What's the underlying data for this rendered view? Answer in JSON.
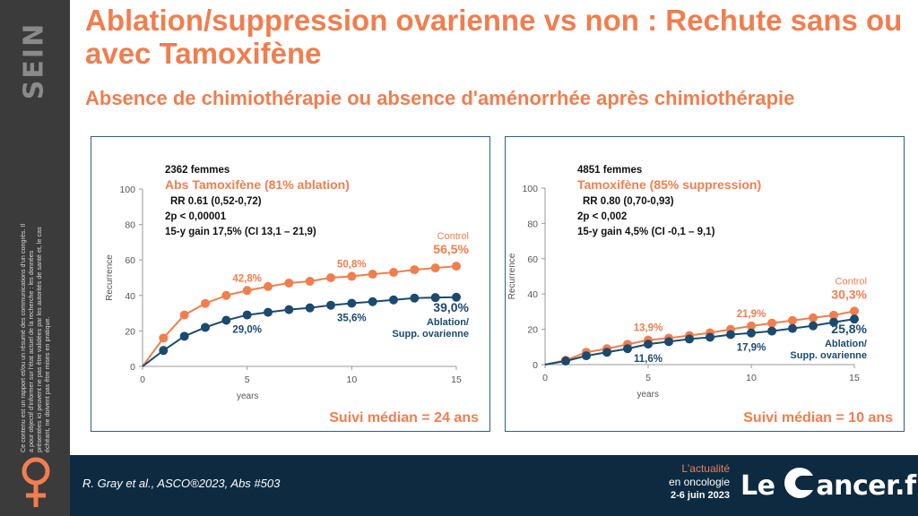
{
  "sidebar": {
    "section": "SEIN",
    "disclaimer": "Ce contenu est un rapport et/ou un résumé des communications d'un congrès. Il a pour objectif d'informer sur l'état actuel de la recherche : les données présentées ici peuvent ne pas être validées par les autorités de santé et, le cas échéant, ne doivent pas être mises en pratique."
  },
  "title": "Ablation/suppression ovarienne vs non : Rechute sans ou avec Tamoxifène",
  "subtitle": "Absence de chimiothérapie ou absence d'aménorrhée après chimiothérapie",
  "colors": {
    "orange": "#f07e4f",
    "navy": "#1c4a6e",
    "gray": "#555555"
  },
  "footer": {
    "reference": "R. Gray et al., ASCO®2023, Abs #503",
    "brand_line1": "L'actualité",
    "brand_line2": "en oncologie",
    "brand_line3": "2-6 juin 2023",
    "logo_left": "Le",
    "logo_right": "ancer.fr"
  },
  "chart_data": [
    {
      "type": "line",
      "xlabel": "years",
      "ylabel": "Recurrence",
      "xlim": [
        0,
        15
      ],
      "ylim": [
        0,
        100
      ],
      "xticks": [
        0,
        5,
        10,
        15
      ],
      "yticks": [
        0,
        20,
        40,
        60,
        80,
        100
      ],
      "annotations": {
        "n": "2362 femmes",
        "arm": "Abs Tamoxifène (81% ablation)",
        "rr": "RR 0.61 (0,52-0,72)",
        "p": "2p < 0,00001",
        "gain": "15-y gain 17,5% (CI 13,1 – 21,9)",
        "followup": "Suivi médian = 24 ans"
      },
      "series": [
        {
          "name": "Control",
          "color": "#f07e4f",
          "x": [
            0,
            1,
            2,
            3,
            4,
            5,
            6,
            7,
            8,
            9,
            10,
            11,
            12,
            13,
            14,
            15
          ],
          "values": [
            0,
            16,
            29,
            35.5,
            40,
            42.8,
            45,
            47,
            48,
            50,
            50.8,
            52,
            53,
            54.5,
            55.5,
            56.5
          ],
          "end_label": "56,5%",
          "point_labels": [
            {
              "x": 5,
              "text": "42,8%"
            },
            {
              "x": 10,
              "text": "50,8%"
            }
          ]
        },
        {
          "name": "Ablation/ Supp. ovarienne",
          "color": "#1c4a6e",
          "x": [
            0,
            1,
            2,
            3,
            4,
            5,
            6,
            7,
            8,
            9,
            10,
            11,
            12,
            13,
            14,
            15
          ],
          "values": [
            0,
            9,
            17,
            22,
            26,
            29,
            30.5,
            32,
            33,
            34.5,
            35.6,
            36.5,
            37.5,
            38.5,
            38.8,
            39
          ],
          "end_label": "39,0%",
          "point_labels": [
            {
              "x": 5,
              "text": "29,0%"
            },
            {
              "x": 10,
              "text": "35,6%"
            }
          ]
        }
      ]
    },
    {
      "type": "line",
      "xlabel": "years",
      "ylabel": "Recurrence",
      "xlim": [
        0,
        15
      ],
      "ylim": [
        0,
        100
      ],
      "xticks": [
        0,
        5,
        10,
        15
      ],
      "yticks": [
        0,
        20,
        40,
        60,
        80,
        100
      ],
      "annotations": {
        "n": "4851 femmes",
        "arm": "Tamoxifène (85% suppression)",
        "rr": "RR 0.80 (0,70-0,93)",
        "p": "2p < 0,002",
        "gain": "15-y gain 4,5% (CI -0,1 – 9,1)",
        "followup": "Suivi médian = 10 ans"
      },
      "series": [
        {
          "name": "Control",
          "color": "#f07e4f",
          "x": [
            0,
            1,
            2,
            3,
            4,
            5,
            6,
            7,
            8,
            9,
            10,
            11,
            12,
            13,
            14,
            15
          ],
          "values": [
            0,
            2.5,
            7,
            9,
            11.5,
            13.9,
            15,
            16.5,
            18,
            20,
            21.9,
            23.5,
            25,
            26.5,
            28,
            30.3
          ],
          "end_label": "30,3%",
          "point_labels": [
            {
              "x": 5,
              "text": "13,9%"
            },
            {
              "x": 10,
              "text": "21,9%"
            }
          ]
        },
        {
          "name": "Ablation/ Supp. ovarienne",
          "color": "#1c4a6e",
          "x": [
            0,
            1,
            2,
            3,
            4,
            5,
            6,
            7,
            8,
            9,
            10,
            11,
            12,
            13,
            14,
            15
          ],
          "values": [
            0,
            2,
            5,
            7,
            9,
            11.6,
            13,
            14.5,
            15.5,
            17,
            17.9,
            19,
            20.5,
            22,
            24,
            25.8
          ],
          "end_label": "25,8%",
          "point_labels": [
            {
              "x": 5,
              "text": "11,6%"
            },
            {
              "x": 10,
              "text": "17,9%"
            }
          ]
        }
      ]
    }
  ]
}
